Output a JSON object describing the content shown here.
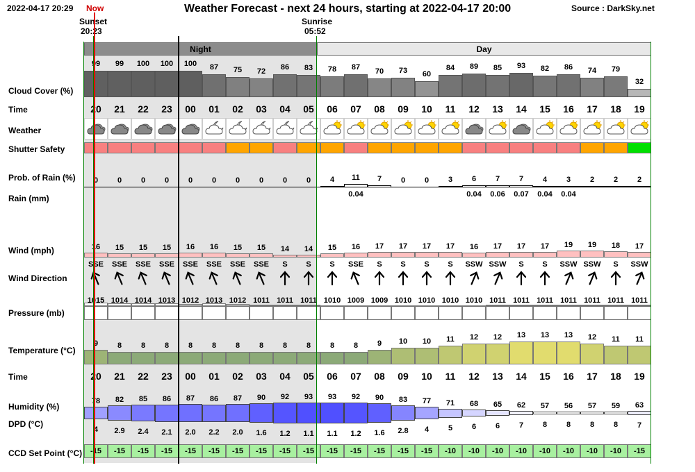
{
  "header": {
    "timestamp": "2022-04-17 20:29",
    "now_label": "Now",
    "title": "Weather Forecast - next 24 hours, starting at 2022-04-17 20:00",
    "source": "Source : DarkSky.net",
    "sunset_label": "Sunset",
    "sunset_time": "20:23",
    "sunrise_label": "Sunrise",
    "sunrise_time": "05:52",
    "night_label": "Night",
    "day_label": "Day"
  },
  "row_labels": {
    "cloud": "Cloud Cover (%)",
    "time": "Time",
    "weather": "Weather",
    "shutter": "Shutter Safety",
    "prob_rain": "Prob. of Rain (%)",
    "rain": "Rain (mm)",
    "wind": "Wind (mph)",
    "wind_dir": "Wind Direction",
    "pressure": "Pressure (mb)",
    "temperature": "Temperature (°C)",
    "time2": "Time",
    "humidity": "Humidity (%)",
    "dpd": "DPD (°C)",
    "ccd": "CCD Set Point (°C)"
  },
  "forecast": {
    "hours": [
      "20",
      "21",
      "22",
      "23",
      "00",
      "01",
      "02",
      "03",
      "04",
      "05",
      "06",
      "07",
      "08",
      "09",
      "10",
      "11",
      "12",
      "13",
      "14",
      "15",
      "16",
      "17",
      "18",
      "19"
    ],
    "cloud_cover": [
      99,
      99,
      100,
      100,
      100,
      87,
      75,
      72,
      86,
      83,
      78,
      87,
      70,
      73,
      60,
      84,
      89,
      85,
      93,
      82,
      86,
      74,
      79,
      32
    ],
    "weather_icons": [
      "cloudy-icon",
      "cloudy-icon",
      "cloudy-icon",
      "cloudy-icon",
      "cloudy-icon",
      "partly-cloudy-night-icon",
      "partly-cloudy-night-icon",
      "partly-cloudy-night-icon",
      "partly-cloudy-night-icon",
      "partly-cloudy-night-icon",
      "partly-cloudy-day-icon",
      "partly-cloudy-day-icon",
      "partly-cloudy-day-icon",
      "partly-cloudy-day-icon",
      "partly-cloudy-day-icon",
      "partly-cloudy-day-icon",
      "cloudy-icon",
      "partly-cloudy-day-icon",
      "cloudy-icon",
      "partly-cloudy-day-icon",
      "partly-cloudy-day-icon",
      "partly-cloudy-day-icon",
      "partly-cloudy-day-icon",
      "partly-cloudy-day-icon"
    ],
    "shutter_safety": [
      "unsafe",
      "unsafe",
      "unsafe",
      "unsafe",
      "unsafe",
      "unsafe",
      "caution",
      "caution",
      "unsafe",
      "caution",
      "caution",
      "unsafe",
      "caution",
      "caution",
      "caution",
      "caution",
      "unsafe",
      "unsafe",
      "unsafe",
      "unsafe",
      "unsafe",
      "caution",
      "caution",
      "safe"
    ],
    "prob_rain": [
      0,
      0,
      0,
      0,
      0,
      0,
      0,
      0,
      0,
      0,
      4,
      11,
      7,
      0,
      0,
      3,
      6,
      7,
      7,
      4,
      3,
      2,
      2,
      2
    ],
    "rain_mm": [
      "",
      "",
      "",
      "",
      "",
      "",
      "",
      "",
      "",
      "",
      "",
      "0.04",
      "",
      "",
      "",
      "",
      "0.04",
      "0.06",
      "0.07",
      "0.04",
      "0.04",
      "",
      "",
      ""
    ],
    "wind_mph": [
      16,
      15,
      15,
      15,
      16,
      16,
      15,
      15,
      14,
      14,
      15,
      16,
      17,
      17,
      17,
      17,
      16,
      17,
      17,
      17,
      19,
      19,
      18,
      17
    ],
    "wind_dir": [
      "SSE",
      "SSE",
      "SSE",
      "SSE",
      "SSE",
      "SSE",
      "SSE",
      "SSE",
      "S",
      "S",
      "S",
      "SSE",
      "S",
      "S",
      "S",
      "S",
      "SSW",
      "SSW",
      "S",
      "S",
      "SSW",
      "SSW",
      "S",
      "SSW"
    ],
    "pressure": [
      1015,
      1014,
      1014,
      1013,
      1012,
      1013,
      1012,
      1011,
      1011,
      1011,
      1010,
      1009,
      1009,
      1010,
      1010,
      1010,
      1010,
      1011,
      1011,
      1011,
      1011,
      1011,
      1011,
      1011
    ],
    "temperature": [
      9,
      8,
      8,
      8,
      8,
      8,
      8,
      8,
      8,
      8,
      8,
      8,
      9,
      10,
      10,
      11,
      12,
      12,
      13,
      13,
      13,
      12,
      11,
      11
    ],
    "humidity": [
      78,
      82,
      85,
      86,
      87,
      86,
      87,
      90,
      92,
      93,
      93,
      92,
      90,
      83,
      77,
      71,
      68,
      65,
      62,
      57,
      56,
      57,
      59,
      63
    ],
    "dpd": [
      "4",
      "2.9",
      "2.4",
      "2.1",
      "2.0",
      "2.2",
      "2.0",
      "1.6",
      "1.2",
      "1.1",
      "1.1",
      "1.2",
      "1.6",
      "2.8",
      "4",
      "5",
      "6",
      "6",
      "7",
      "8",
      "8",
      "8",
      "8",
      "7"
    ],
    "ccd_set_point": [
      -15,
      -15,
      -15,
      -15,
      -15,
      -15,
      -15,
      -15,
      -15,
      -15,
      -15,
      -15,
      -15,
      -15,
      -15,
      -10,
      -10,
      -10,
      -10,
      -10,
      -10,
      -10,
      -10,
      -15
    ]
  },
  "colors": {
    "night_bg": "#e4e4e4",
    "day_bg": "#ffffff",
    "unsafe": "#f88080",
    "caution": "#ffa500",
    "safe": "#00e000",
    "ccd_bg": "#a8f0a0",
    "now_line": "#e00000",
    "sun_line": "#008000"
  }
}
